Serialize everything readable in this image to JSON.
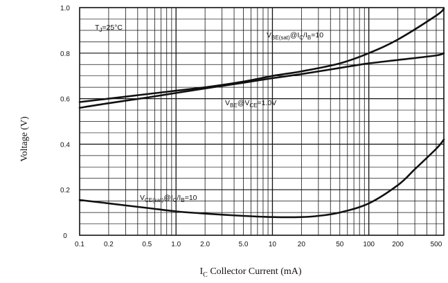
{
  "chart_data": {
    "type": "line",
    "x_scale": "log",
    "y_scale": "linear",
    "xlim": [
      0.1,
      600
    ],
    "ylim": [
      0,
      1.0
    ],
    "xticks": [
      0.1,
      0.2,
      0.5,
      1.0,
      2.0,
      5.0,
      10,
      20,
      50,
      100,
      200,
      500
    ],
    "xtick_labels": [
      "0.1",
      "0.2",
      "0.5",
      "1.0",
      "2.0",
      "5.0",
      "10",
      "20",
      "50",
      "100",
      "200",
      "500"
    ],
    "yticks": [
      0,
      0.2,
      0.4,
      0.6,
      0.8,
      1.0
    ],
    "ytick_labels": [
      "0",
      "0.2",
      "0.4",
      "0.6",
      "0.8",
      "1.0"
    ],
    "grid": true,
    "ylabel": "Voltage (V)",
    "xlabel": {
      "main": "I",
      "sub": "C",
      "rest": " Collector Current (mA)"
    },
    "annotations": {
      "temp": {
        "main": "T",
        "sub": "J",
        "rest": "=25°C"
      },
      "vbe_sat": {
        "v": "V",
        "sub1": "BE(sat)",
        "mid": "@I",
        "sub2": "C",
        "slash": "/I",
        "sub3": "B",
        "end": "=10"
      },
      "vbe_on": {
        "v": "V",
        "sub1": "BE",
        "mid": "@V",
        "sub2": "CE",
        "end": "=1.0V"
      },
      "vce_sat": {
        "v": "V",
        "sub1": "CE(sat)",
        "mid": "@I",
        "sub2": "C",
        "slash": "/I",
        "sub3": "B",
        "end": "=10"
      }
    },
    "series": [
      {
        "name": "VBE(sat)@IC/IB=10",
        "color": "#111111",
        "x": [
          0.1,
          0.2,
          0.5,
          1.0,
          2.0,
          5.0,
          10,
          20,
          50,
          100,
          200,
          500,
          600
        ],
        "y": [
          0.585,
          0.6,
          0.62,
          0.635,
          0.65,
          0.675,
          0.7,
          0.72,
          0.755,
          0.8,
          0.86,
          0.965,
          0.995
        ]
      },
      {
        "name": "VBE@VCE=1.0V",
        "color": "#111111",
        "x": [
          0.1,
          0.2,
          0.5,
          1.0,
          2.0,
          5.0,
          10,
          20,
          50,
          100,
          200,
          500,
          600
        ],
        "y": [
          0.56,
          0.58,
          0.605,
          0.625,
          0.645,
          0.67,
          0.69,
          0.708,
          0.735,
          0.755,
          0.77,
          0.79,
          0.8
        ]
      },
      {
        "name": "VCE(sat)@IC/IB=10",
        "color": "#111111",
        "x": [
          0.1,
          0.2,
          0.5,
          1.0,
          2.0,
          5.0,
          10,
          20,
          30,
          50,
          100,
          200,
          300,
          500,
          600
        ],
        "y": [
          0.155,
          0.14,
          0.12,
          0.105,
          0.095,
          0.085,
          0.08,
          0.08,
          0.085,
          0.1,
          0.14,
          0.22,
          0.29,
          0.38,
          0.42
        ]
      }
    ]
  }
}
